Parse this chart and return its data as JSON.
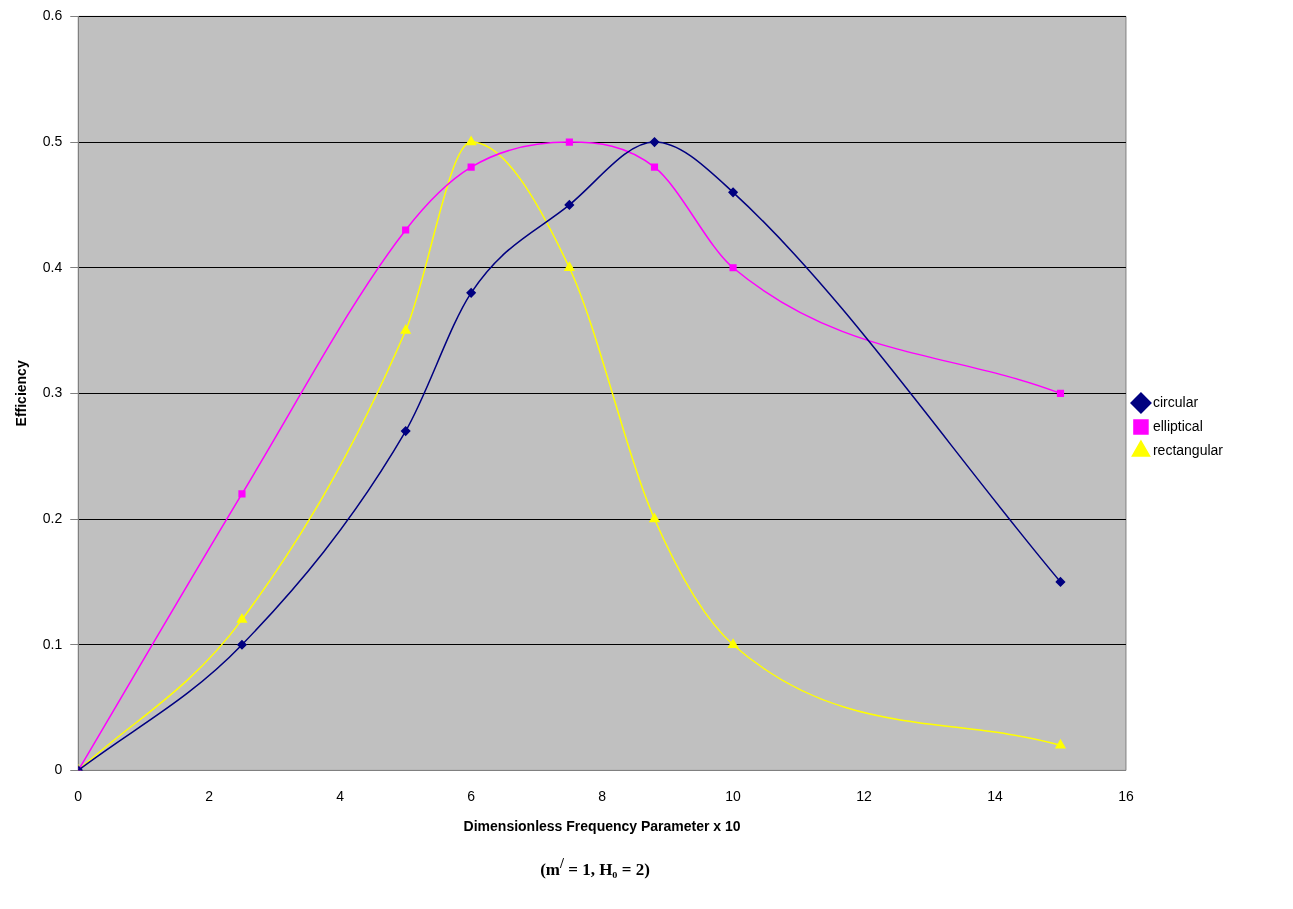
{
  "chart_data": {
    "type": "line",
    "xlabel": "Dimensionless Frequency Parameter x 10",
    "ylabel": "Efficiency",
    "xlim": [
      0,
      16
    ],
    "xticks": [
      0,
      2,
      4,
      6,
      8,
      10,
      12,
      14,
      16
    ],
    "ylim": [
      0,
      0.6
    ],
    "yticks": [
      0,
      0.1,
      0.2,
      0.3,
      0.4,
      0.5,
      0.6
    ],
    "grid": "y",
    "legend": "right",
    "line_style": "solid",
    "annotations": [
      "(m$^{/}$ = 1, H₀ = 2)"
    ],
    "x": [
      0,
      2.5,
      5,
      6,
      7.5,
      8.8,
      10,
      15
    ],
    "series": [
      {
        "name": "circular",
        "color": "#000080",
        "marker": "diamond",
        "values": [
          0,
          0.1,
          0.27,
          0.38,
          0.45,
          0.5,
          0.46,
          0.15
        ]
      },
      {
        "name": "elliptical",
        "color": "#ff00ff",
        "marker": "square",
        "values": [
          0,
          0.22,
          0.43,
          0.48,
          0.5,
          0.48,
          0.4,
          0.3
        ]
      },
      {
        "name": "rectangular",
        "color": "#ffff00",
        "marker": "triangle",
        "values": [
          0,
          0.12,
          0.35,
          0.5,
          0.4,
          0.2,
          0.1,
          0.02
        ]
      }
    ]
  }
}
